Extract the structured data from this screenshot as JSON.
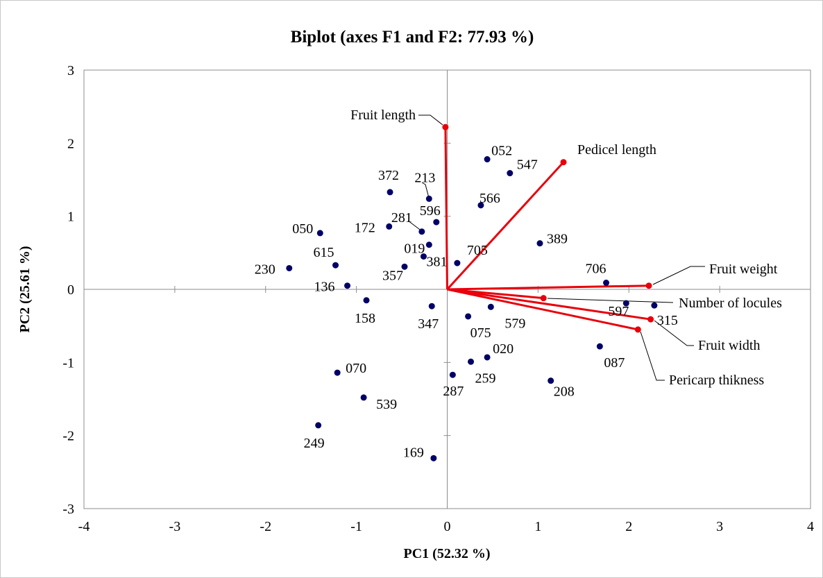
{
  "chart_data": {
    "type": "scatter",
    "title": "Biplot (axes F1 and F2: 77.93 %)",
    "xlabel": "PC1 (52.32 %)",
    "ylabel": "PC2 (25.61 %)",
    "xlim": [
      -4,
      4
    ],
    "ylim": [
      -3,
      3
    ],
    "xticks": [
      "-4",
      "-3",
      "-2",
      "-1",
      "0",
      "1",
      "2",
      "3",
      "4"
    ],
    "yticks": [
      "3",
      "2",
      "1",
      "0",
      "-1",
      "-2",
      "-3"
    ],
    "grid": false,
    "observation_color": "#000066",
    "variable_color": "#e8000b",
    "observations": [
      {
        "label": "052",
        "x": 0.44,
        "y": 1.78
      },
      {
        "label": "547",
        "x": 0.69,
        "y": 1.59
      },
      {
        "label": "372",
        "x": -0.63,
        "y": 1.33
      },
      {
        "label": "213",
        "x": -0.2,
        "y": 1.24
      },
      {
        "label": "566",
        "x": 0.37,
        "y": 1.15
      },
      {
        "label": "281",
        "x": -0.28,
        "y": 0.79
      },
      {
        "label": "596",
        "x": -0.12,
        "y": 0.92
      },
      {
        "label": "050",
        "x": -1.4,
        "y": 0.77
      },
      {
        "label": "172",
        "x": -0.64,
        "y": 0.86
      },
      {
        "label": "389",
        "x": 1.02,
        "y": 0.63
      },
      {
        "label": "019",
        "x": -0.2,
        "y": 0.61
      },
      {
        "label": "705",
        "x": 0.11,
        "y": 0.36
      },
      {
        "label": "615",
        "x": -1.23,
        "y": 0.33
      },
      {
        "label": "381",
        "x": -0.26,
        "y": 0.45
      },
      {
        "label": "230",
        "x": -1.74,
        "y": 0.29
      },
      {
        "label": "357",
        "x": -0.47,
        "y": 0.31
      },
      {
        "label": "136",
        "x": -1.1,
        "y": 0.05
      },
      {
        "label": "706",
        "x": 1.75,
        "y": 0.09
      },
      {
        "label": "597",
        "x": 1.97,
        "y": -0.19
      },
      {
        "label": "158",
        "x": -0.89,
        "y": -0.15
      },
      {
        "label": "347",
        "x": -0.17,
        "y": -0.23
      },
      {
        "label": "579",
        "x": 0.48,
        "y": -0.24
      },
      {
        "label": "075",
        "x": 0.23,
        "y": -0.37
      },
      {
        "label": "315",
        "x": 2.28,
        "y": -0.22
      },
      {
        "label": "087",
        "x": 1.68,
        "y": -0.78
      },
      {
        "label": "020",
        "x": 0.44,
        "y": -0.93
      },
      {
        "label": "259",
        "x": 0.26,
        "y": -0.99
      },
      {
        "label": "070",
        "x": -1.21,
        "y": -1.14
      },
      {
        "label": "287",
        "x": 0.06,
        "y": -1.17
      },
      {
        "label": "208",
        "x": 1.14,
        "y": -1.25
      },
      {
        "label": "539",
        "x": -0.92,
        "y": -1.48
      },
      {
        "label": "249",
        "x": -1.42,
        "y": -1.86
      },
      {
        "label": "169",
        "x": -0.15,
        "y": -2.31
      }
    ],
    "variables": [
      {
        "label": "Fruit length",
        "x": -0.02,
        "y": 2.22
      },
      {
        "label": "Pedicel length",
        "x": 1.28,
        "y": 1.74
      },
      {
        "label": "Fruit weight",
        "x": 2.22,
        "y": 0.05
      },
      {
        "label": "Number of locules",
        "x": 1.06,
        "y": -0.12
      },
      {
        "label": "Fruit width",
        "x": 2.24,
        "y": -0.41
      },
      {
        "label": "Pericarp thikness",
        "x": 2.1,
        "y": -0.55
      }
    ]
  }
}
